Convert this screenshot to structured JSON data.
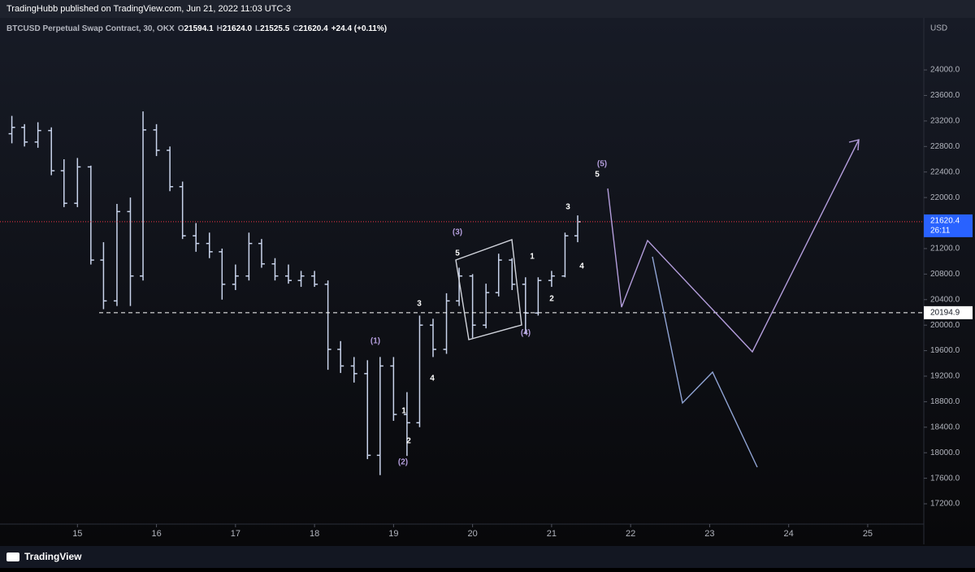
{
  "header": {
    "publisher": "TradingHubb published on TradingView.com, Jun 21, 2022 11:03 UTC-3"
  },
  "chart_data": {
    "type": "ohlc",
    "legend": {
      "symbol": "BTCUSD Perpetual Swap Contract, 30, OKX",
      "open_label": "O",
      "open": "21594.1",
      "high_label": "H",
      "high": "21624.0",
      "low_label": "L",
      "low": "21525.5",
      "close_label": "C",
      "close": "21620.4",
      "change": "+24.4 (+0.11%)"
    },
    "color": "#c9d4ec",
    "x": [
      14.17,
      14.33,
      14.5,
      14.67,
      14.83,
      15.0,
      15.17,
      15.33,
      15.5,
      15.67,
      15.83,
      16.0,
      16.17,
      16.33,
      16.5,
      16.67,
      16.83,
      17.0,
      17.17,
      17.33,
      17.5,
      17.67,
      17.83,
      18.0,
      18.17,
      18.33,
      18.5,
      18.67,
      18.83,
      19.0,
      19.17,
      19.33,
      19.5,
      19.67,
      19.83,
      20.0,
      20.17,
      20.33,
      20.5,
      20.67,
      20.83,
      21.0,
      21.17,
      21.33
    ],
    "open": [
      23000,
      23100,
      22870,
      23050,
      22420,
      21910,
      22480,
      21020,
      20380,
      21780,
      20770,
      23060,
      22740,
      22170,
      21400,
      21280,
      21150,
      20640,
      20770,
      21280,
      20960,
      20770,
      20700,
      20770,
      20640,
      19620,
      19360,
      19240,
      17960,
      19360,
      18600,
      18470,
      20000,
      19620,
      20380,
      20770,
      20000,
      20510,
      21020,
      20640,
      20190,
      20700,
      20770,
      21400
    ],
    "high": [
      23280,
      23150,
      23180,
      23100,
      22600,
      22620,
      22500,
      21300,
      21900,
      22000,
      23350,
      23150,
      22800,
      22250,
      21600,
      21450,
      21200,
      20950,
      21450,
      21350,
      21050,
      20950,
      20850,
      20850,
      20700,
      19750,
      19500,
      19450,
      19500,
      19500,
      18950,
      20150,
      20100,
      20500,
      20900,
      20800,
      20650,
      21120,
      21050,
      20750,
      20750,
      20850,
      21450,
      21720
    ],
    "low": [
      22850,
      22800,
      22780,
      22350,
      21850,
      21850,
      20950,
      20250,
      20300,
      20300,
      20700,
      22650,
      22100,
      21350,
      21150,
      21050,
      20400,
      20550,
      20700,
      20900,
      20700,
      20650,
      20600,
      20600,
      19300,
      19250,
      19100,
      17900,
      17650,
      18500,
      17950,
      18400,
      19500,
      19550,
      20300,
      19800,
      19950,
      20450,
      20550,
      19860,
      20150,
      20600,
      20750,
      21300
    ],
    "close": [
      23100,
      22870,
      23050,
      22420,
      21910,
      22480,
      21020,
      20380,
      21780,
      20770,
      23060,
      22740,
      22170,
      21400,
      21280,
      21150,
      20640,
      20770,
      21280,
      20960,
      20770,
      20700,
      20770,
      20640,
      19620,
      19360,
      19240,
      17960,
      19360,
      18600,
      18470,
      20000,
      19620,
      20380,
      20770,
      20000,
      20510,
      21020,
      20640,
      20190,
      20700,
      20770,
      21400,
      21620.4
    ],
    "xlim": [
      14.02,
      25.71
    ],
    "xticks": [
      15,
      16,
      17,
      18,
      19,
      20,
      21,
      22,
      23,
      24,
      25
    ],
    "ylim": [
      16882,
      24816
    ],
    "y_unit": "USD",
    "yticks": [
      {
        "value": 17200,
        "label": "17200.0"
      },
      {
        "value": 17600,
        "label": "17600.0"
      },
      {
        "value": 18000,
        "label": "18000.0"
      },
      {
        "value": 18400,
        "label": "18400.0"
      },
      {
        "value": 18800,
        "label": "18800.0"
      },
      {
        "value": 19200,
        "label": "19200.0"
      },
      {
        "value": 19600,
        "label": "19600.0"
      },
      {
        "value": 20000,
        "label": "20000.0"
      },
      {
        "value": 20400,
        "label": "20400.0"
      },
      {
        "value": 20800,
        "label": "20800.0"
      },
      {
        "value": 21200,
        "label": "21200.0"
      },
      {
        "value": 21600,
        "label": "21600.0"
      },
      {
        "value": 22000,
        "label": "22000.0"
      },
      {
        "value": 22400,
        "label": "22400.0"
      },
      {
        "value": 22800,
        "label": "22800.0"
      },
      {
        "value": 23200,
        "label": "23200.0"
      },
      {
        "value": 23600,
        "label": "23600.0"
      },
      {
        "value": 24000,
        "label": "24000.0"
      }
    ],
    "last_price": 21620.4,
    "countdown": "26:11",
    "level": 20194.9,
    "annotations": [
      "(1)",
      "(2)",
      "(3)",
      "(4)",
      "(5)",
      "1",
      "2",
      "3",
      "4",
      "5",
      "1",
      "2",
      "3",
      "4",
      "5"
    ]
  },
  "footer": {
    "brand": "TradingView"
  }
}
